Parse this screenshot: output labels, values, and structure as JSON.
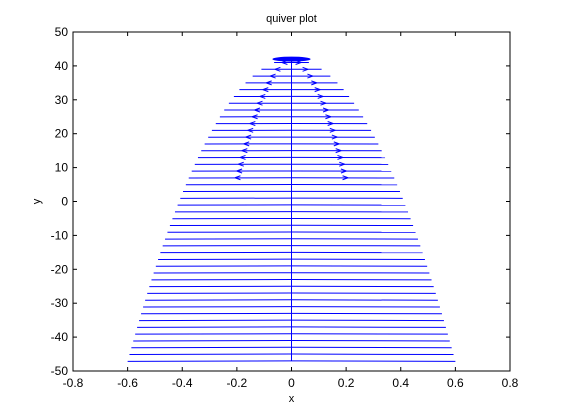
{
  "figure": {
    "background": "#ffffff",
    "axes_color": "#000000",
    "series_color": "#0000ff"
  },
  "chart_data": {
    "type": "quiver",
    "title": "quiver plot",
    "xlabel": "x",
    "ylabel": "y",
    "xlim": [
      -0.8,
      0.8
    ],
    "ylim": [
      -50,
      50
    ],
    "xticks": [
      -0.8,
      -0.6,
      -0.4,
      -0.2,
      0,
      0.2,
      0.4,
      0.6,
      0.8
    ],
    "xtick_labels": [
      "-0.8",
      "-0.6",
      "-0.4",
      "-0.2",
      "0",
      "0.2",
      "0.4",
      "0.6",
      "0.8"
    ],
    "yticks": [
      -50,
      -40,
      -30,
      -20,
      -10,
      0,
      10,
      20,
      30,
      40,
      50
    ],
    "ytick_labels": [
      "-50",
      "-40",
      "-30",
      "-20",
      "-10",
      "0",
      "10",
      "20",
      "30",
      "40",
      "50"
    ],
    "grid": false,
    "legend": "none",
    "field": {
      "description_shape": "horizontal arrows centered on x=0 forming a parabola y = 42 - 240*x^2",
      "y_range": [
        -47,
        42
      ],
      "row_spacing": 2,
      "half_width_at_bottom": 0.6,
      "vertical_stem_x": 0
    }
  }
}
